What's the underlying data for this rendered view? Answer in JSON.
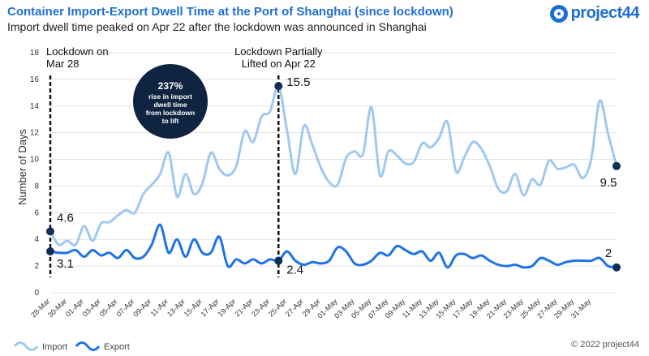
{
  "header": {
    "title": "Container Import-Export Dwell Time at the Port of Shanghai (since lockdown)",
    "subtitle": "Import dwell time peaked on Apr 22 after the lockdown was announced in Shanghai"
  },
  "brand": {
    "logo_text": "project44",
    "color": "#1f6fd1"
  },
  "footer": {
    "copyright": "© 2022 project44"
  },
  "colors": {
    "import": "#9fc9f0",
    "export": "#1e73e8",
    "marker": "#0f2f57",
    "callout": "#0f2440"
  },
  "chart_data": {
    "type": "line",
    "title": "Container Import-Export Dwell Time at the Port of Shanghai (since lockdown)",
    "ylabel": "Number of Days",
    "ylim": [
      0,
      18
    ],
    "yticks": [
      0,
      2,
      4,
      6,
      8,
      10,
      12,
      14,
      16,
      18
    ],
    "grid": true,
    "legend_position": "bottom-left",
    "x_tick_labels": [
      "28-Mar",
      "30-Mar",
      "01-Apr",
      "03-Apr",
      "05-Apr",
      "07-Apr",
      "09-Apr",
      "11-Apr",
      "13-Apr",
      "15-Apr",
      "17-Apr",
      "19-Apr",
      "21-Apr",
      "23-Apr",
      "25-Apr",
      "27-Apr",
      "29-Apr",
      "01-May",
      "03-May",
      "05-May",
      "07-May",
      "09-May",
      "11-May",
      "13-May",
      "15-May",
      "17-May",
      "19-May",
      "21-May",
      "23-May",
      "25-May",
      "27-May",
      "29-May",
      "31-May"
    ],
    "series": [
      {
        "name": "Import",
        "values": [
          4.6,
          3.6,
          3.9,
          3.6,
          5.0,
          3.9,
          5.2,
          5.3,
          5.8,
          6.2,
          6.0,
          7.4,
          8.1,
          8.9,
          10.5,
          7.2,
          8.9,
          7.4,
          8.2,
          10.5,
          9.3,
          8.8,
          9.5,
          12.1,
          11.3,
          13.2,
          13.6,
          15.5,
          12.2,
          8.9,
          12.5,
          11.1,
          9.4,
          8.3,
          8.1,
          10.1,
          10.6,
          10.4,
          13.9,
          8.8,
          10.6,
          10.3,
          9.7,
          9.8,
          11.2,
          10.9,
          11.6,
          12.8,
          9.1,
          10.2,
          11.3,
          10.8,
          9.5,
          7.8,
          7.6,
          8.9,
          7.3,
          8.5,
          8.1,
          9.9,
          9.3,
          9.4,
          9.6,
          8.6,
          10.0,
          14.4,
          11.9,
          9.5
        ]
      },
      {
        "name": "Export",
        "values": [
          3.1,
          3.0,
          3.0,
          3.2,
          2.7,
          3.2,
          2.8,
          3.0,
          2.6,
          3.2,
          2.6,
          2.7,
          3.6,
          5.1,
          3.0,
          4.0,
          2.7,
          4.0,
          3.0,
          3.0,
          4.2,
          2.0,
          2.5,
          2.2,
          2.5,
          2.2,
          2.5,
          2.4,
          3.1,
          2.4,
          2.1,
          2.3,
          2.2,
          2.4,
          3.4,
          3.1,
          2.2,
          2.1,
          2.4,
          3.0,
          2.8,
          3.5,
          3.2,
          2.9,
          3.1,
          2.4,
          3.0,
          1.9,
          2.8,
          2.9,
          2.6,
          2.8,
          2.4,
          2.1,
          2.0,
          2.1,
          1.9,
          2.0,
          2.6,
          2.4,
          2.1,
          2.3,
          2.4,
          2.4,
          2.4,
          2.6,
          2.0,
          1.9
        ]
      }
    ],
    "annotations": {
      "vlines": [
        {
          "index": 0,
          "label_lines": [
            "Lockdown on",
            "Mar 28"
          ],
          "align": "left"
        },
        {
          "index": 27,
          "label_lines": [
            "Lockdown Partially",
            "Lifted on Apr 22"
          ],
          "align": "center"
        }
      ],
      "points": [
        {
          "series": 0,
          "index": 0,
          "label": "4.6"
        },
        {
          "series": 1,
          "index": 0,
          "label": "3.1"
        },
        {
          "series": 0,
          "index": 27,
          "label": "15.5"
        },
        {
          "series": 1,
          "index": 27,
          "label": "2.4"
        },
        {
          "series": 0,
          "index": 67,
          "label": "9.5"
        },
        {
          "series": 1,
          "index": 67,
          "label": "2"
        }
      ],
      "callout": {
        "lines": [
          "237%",
          "rise in import",
          "dwell time",
          "from lockdown",
          "to lift"
        ]
      }
    }
  }
}
